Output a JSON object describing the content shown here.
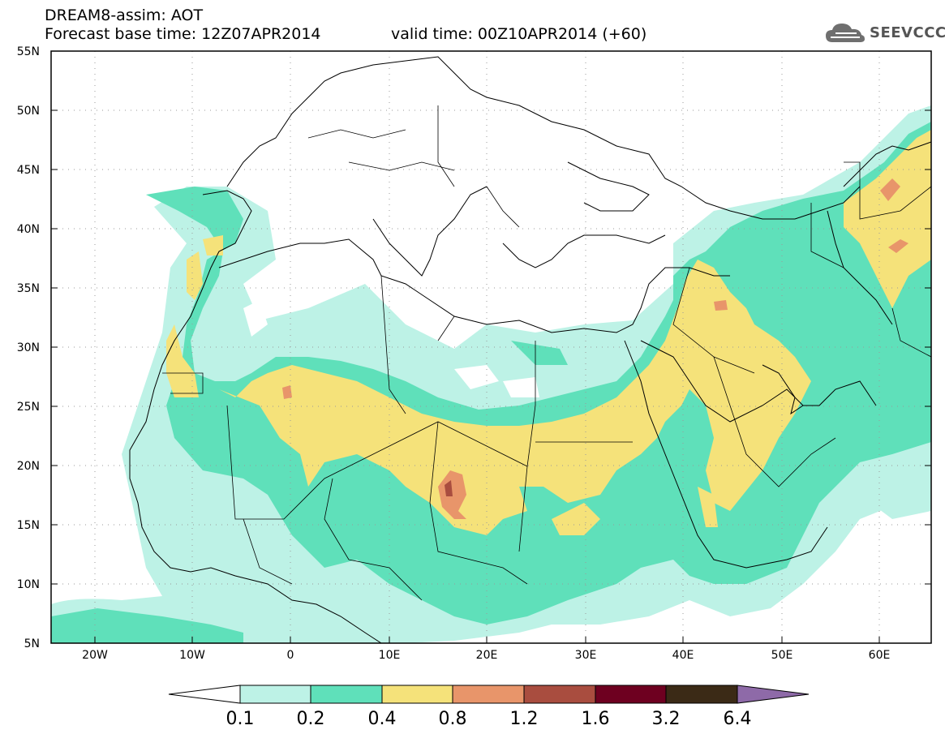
{
  "header": {
    "title": "DREAM8-assim: AOT",
    "base_time": "Forecast base time: 12Z07APR2014",
    "valid_time": "valid time: 00Z10APR2014 (+60)",
    "logo_text": "SEEVCCC",
    "logo_icon": "cloud-icon"
  },
  "map": {
    "lat_labels": [
      "55N",
      "50N",
      "45N",
      "40N",
      "35N",
      "30N",
      "25N",
      "20N",
      "15N",
      "10N",
      "5N"
    ],
    "lon_labels": [
      "20W",
      "10W",
      "0",
      "10E",
      "20E",
      "30E",
      "40E",
      "50E",
      "60E"
    ],
    "lat_range": [
      5,
      55
    ],
    "lon_range": [
      -25,
      65
    ],
    "grid": "dotted"
  },
  "colorbar": {
    "labels": [
      "0.1",
      "0.2",
      "0.4",
      "0.8",
      "1.2",
      "1.6",
      "3.2",
      "6.4"
    ],
    "colors": [
      "#ffffff",
      "#bdf2e6",
      "#5fe0ba",
      "#f5e27a",
      "#e8956a",
      "#a94d3f",
      "#6e0020",
      "#3b2a16",
      "#8e6aa8"
    ]
  }
}
